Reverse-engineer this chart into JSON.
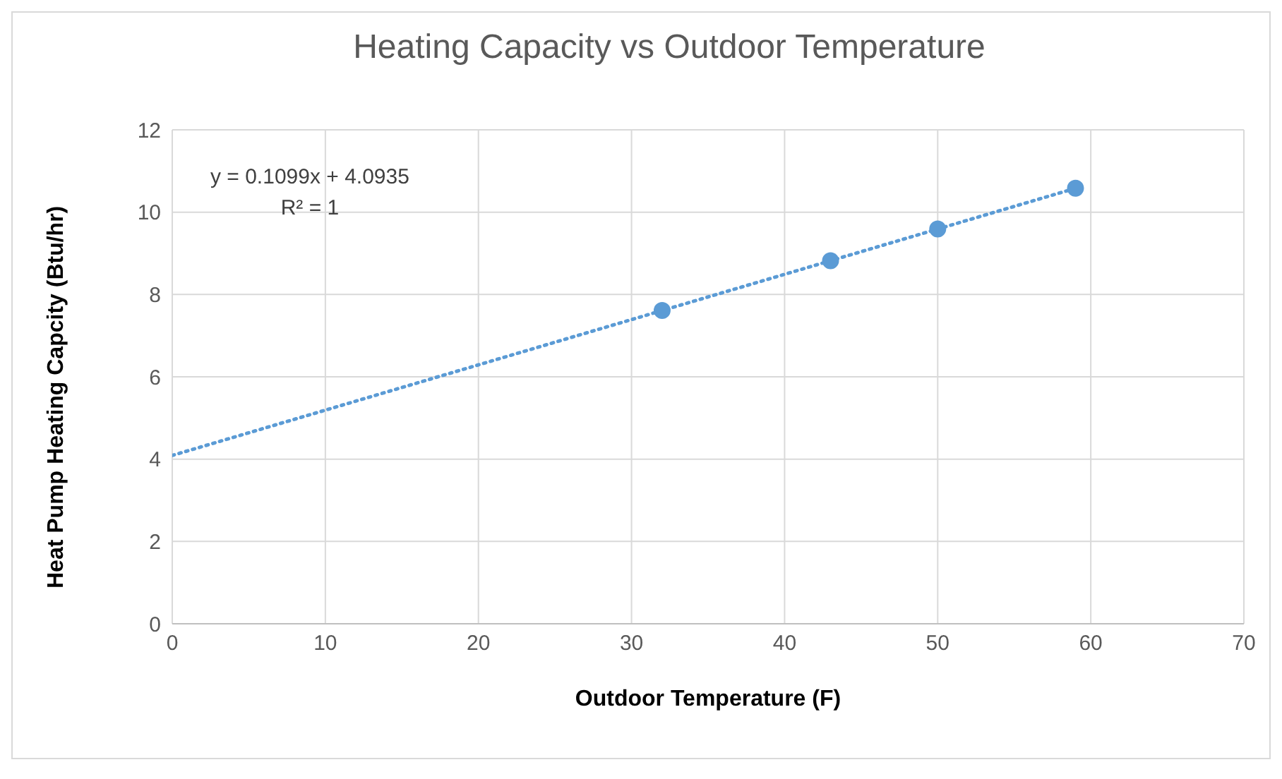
{
  "chart_data": {
    "type": "scatter",
    "title": "Heating Capacity vs Outdoor Temperature",
    "xlabel": "Outdoor Temperature (F)",
    "ylabel": "Heat Pump Heating Capcity (Btu/hr)",
    "series": [
      {
        "color": "#5b9bd5",
        "marker": "circle",
        "x": [
          32,
          43,
          50,
          59
        ],
        "values": [
          7.61,
          8.82,
          9.59,
          10.58
        ]
      },
      {
        "type": "line",
        "color": "#5b9bd5",
        "marker": "none",
        "line_style": "dotted",
        "x": [
          0,
          59
        ],
        "values": [
          4.09,
          10.58
        ]
      }
    ],
    "xlim": [
      0,
      70
    ],
    "xticks": [
      0,
      10,
      20,
      30,
      40,
      50,
      60,
      70
    ],
    "ylim": [
      0,
      12
    ],
    "yticks": [
      0,
      2,
      4,
      6,
      8,
      10,
      12
    ],
    "grid": true,
    "annotations": [
      "y = 0.1099x + 4.0935",
      "R² = 1"
    ]
  }
}
